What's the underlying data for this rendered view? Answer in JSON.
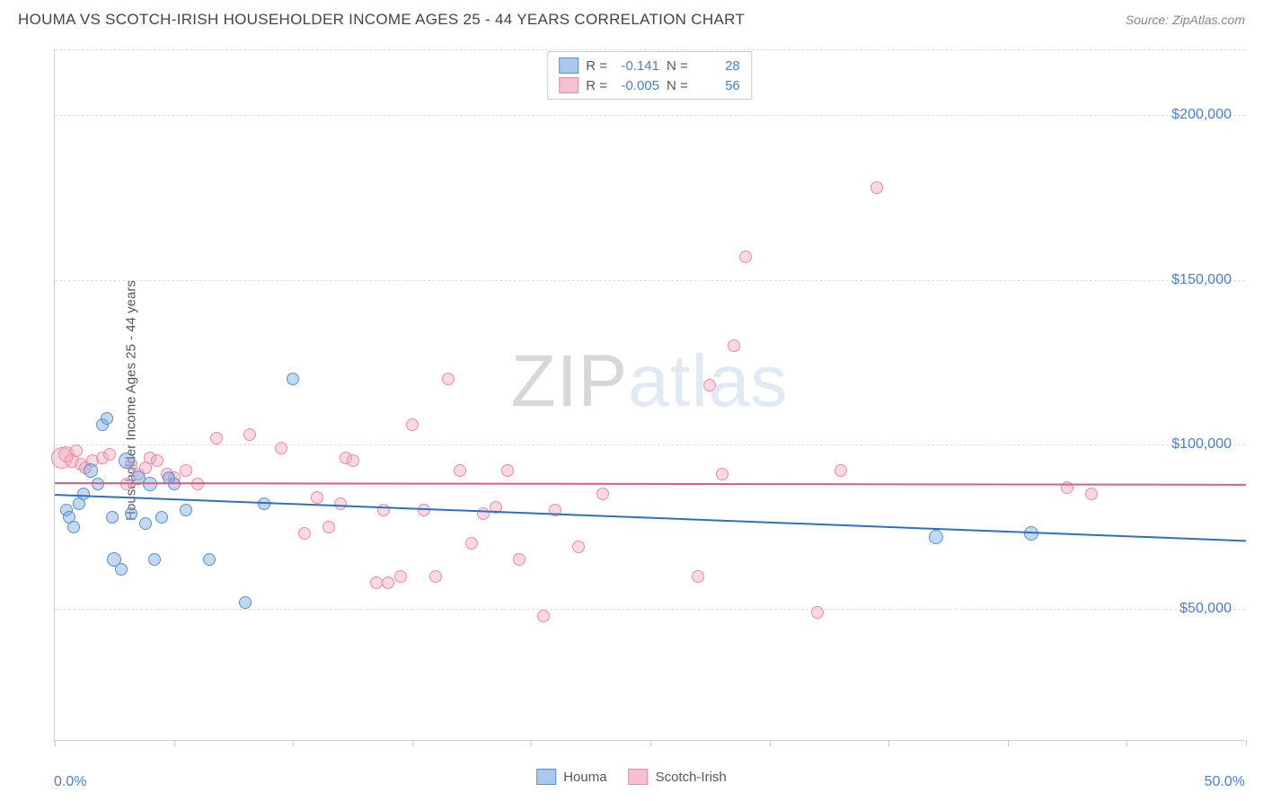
{
  "title": "HOUMA VS SCOTCH-IRISH HOUSEHOLDER INCOME AGES 25 - 44 YEARS CORRELATION CHART",
  "source": "Source: ZipAtlas.com",
  "y_axis_title": "Householder Income Ages 25 - 44 years",
  "x_axis": {
    "min_label": "0.0%",
    "max_label": "50.0%",
    "xlim": [
      0,
      50
    ],
    "tick_count": 11
  },
  "y_axis": {
    "ylim": [
      10000,
      220000
    ],
    "ticks": [
      {
        "v": 50000,
        "label": "$50,000"
      },
      {
        "v": 100000,
        "label": "$100,000"
      },
      {
        "v": 150000,
        "label": "$150,000"
      },
      {
        "v": 200000,
        "label": "$200,000"
      }
    ]
  },
  "series": {
    "houma": {
      "label": "Houma",
      "fill": "rgba(120,170,225,0.45)",
      "stroke": "#5b8fd0",
      "swatch_fill": "#a9c9ec",
      "trend_color": "#2f6fc2",
      "R": "-0.141",
      "N": "28",
      "trend": {
        "y_at_x0": 85000,
        "y_at_x50": 71000
      },
      "points": [
        {
          "x": 0.5,
          "y": 80000,
          "r": 7
        },
        {
          "x": 0.6,
          "y": 78000,
          "r": 7
        },
        {
          "x": 0.8,
          "y": 75000,
          "r": 7
        },
        {
          "x": 1.0,
          "y": 82000,
          "r": 7
        },
        {
          "x": 1.2,
          "y": 85000,
          "r": 7
        },
        {
          "x": 1.5,
          "y": 92000,
          "r": 8
        },
        {
          "x": 1.8,
          "y": 88000,
          "r": 7
        },
        {
          "x": 2.0,
          "y": 106000,
          "r": 7
        },
        {
          "x": 2.2,
          "y": 108000,
          "r": 7
        },
        {
          "x": 2.4,
          "y": 78000,
          "r": 7
        },
        {
          "x": 2.5,
          "y": 65000,
          "r": 8
        },
        {
          "x": 2.8,
          "y": 62000,
          "r": 7
        },
        {
          "x": 3.0,
          "y": 95000,
          "r": 9
        },
        {
          "x": 3.2,
          "y": 79000,
          "r": 7
        },
        {
          "x": 3.5,
          "y": 90000,
          "r": 8
        },
        {
          "x": 3.8,
          "y": 76000,
          "r": 7
        },
        {
          "x": 4.0,
          "y": 88000,
          "r": 8
        },
        {
          "x": 4.2,
          "y": 65000,
          "r": 7
        },
        {
          "x": 4.5,
          "y": 78000,
          "r": 7
        },
        {
          "x": 5.0,
          "y": 88000,
          "r": 7
        },
        {
          "x": 5.5,
          "y": 80000,
          "r": 7
        },
        {
          "x": 6.5,
          "y": 65000,
          "r": 7
        },
        {
          "x": 8.0,
          "y": 52000,
          "r": 7
        },
        {
          "x": 8.8,
          "y": 82000,
          "r": 7
        },
        {
          "x": 10.0,
          "y": 120000,
          "r": 7
        },
        {
          "x": 37.0,
          "y": 72000,
          "r": 8
        },
        {
          "x": 41.0,
          "y": 73000,
          "r": 8
        },
        {
          "x": 4.8,
          "y": 90000,
          "r": 7
        }
      ]
    },
    "scotch_irish": {
      "label": "Scotch-Irish",
      "fill": "rgba(244,170,190,0.45)",
      "stroke": "#e88ba5",
      "swatch_fill": "#f6c0cf",
      "trend_color": "#e05b82",
      "R": "-0.005",
      "N": "56",
      "trend": {
        "y_at_x0": 88500,
        "y_at_x50": 88000
      },
      "points": [
        {
          "x": 0.3,
          "y": 96000,
          "r": 12
        },
        {
          "x": 0.5,
          "y": 97000,
          "r": 9
        },
        {
          "x": 0.7,
          "y": 95000,
          "r": 8
        },
        {
          "x": 0.9,
          "y": 98000,
          "r": 7
        },
        {
          "x": 1.1,
          "y": 94000,
          "r": 7
        },
        {
          "x": 1.3,
          "y": 93000,
          "r": 7
        },
        {
          "x": 1.6,
          "y": 95000,
          "r": 7
        },
        {
          "x": 2.0,
          "y": 96000,
          "r": 7
        },
        {
          "x": 2.3,
          "y": 97000,
          "r": 7
        },
        {
          "x": 3.0,
          "y": 88000,
          "r": 7
        },
        {
          "x": 3.2,
          "y": 94000,
          "r": 7
        },
        {
          "x": 3.5,
          "y": 91000,
          "r": 7
        },
        {
          "x": 3.8,
          "y": 93000,
          "r": 7
        },
        {
          "x": 4.0,
          "y": 96000,
          "r": 7
        },
        {
          "x": 4.3,
          "y": 95000,
          "r": 7
        },
        {
          "x": 4.7,
          "y": 91000,
          "r": 7
        },
        {
          "x": 5.0,
          "y": 90000,
          "r": 7
        },
        {
          "x": 5.5,
          "y": 92000,
          "r": 7
        },
        {
          "x": 6.0,
          "y": 88000,
          "r": 7
        },
        {
          "x": 6.8,
          "y": 102000,
          "r": 7
        },
        {
          "x": 8.2,
          "y": 103000,
          "r": 7
        },
        {
          "x": 9.5,
          "y": 99000,
          "r": 7
        },
        {
          "x": 10.5,
          "y": 73000,
          "r": 7
        },
        {
          "x": 11.0,
          "y": 84000,
          "r": 7
        },
        {
          "x": 11.5,
          "y": 75000,
          "r": 7
        },
        {
          "x": 12.0,
          "y": 82000,
          "r": 7
        },
        {
          "x": 12.2,
          "y": 96000,
          "r": 7
        },
        {
          "x": 12.5,
          "y": 95000,
          "r": 7
        },
        {
          "x": 13.5,
          "y": 58000,
          "r": 7
        },
        {
          "x": 13.8,
          "y": 80000,
          "r": 7
        },
        {
          "x": 14.0,
          "y": 58000,
          "r": 7
        },
        {
          "x": 14.5,
          "y": 60000,
          "r": 7
        },
        {
          "x": 15.0,
          "y": 106000,
          "r": 7
        },
        {
          "x": 15.5,
          "y": 80000,
          "r": 7
        },
        {
          "x": 16.0,
          "y": 60000,
          "r": 7
        },
        {
          "x": 16.5,
          "y": 120000,
          "r": 7
        },
        {
          "x": 17.0,
          "y": 92000,
          "r": 7
        },
        {
          "x": 17.5,
          "y": 70000,
          "r": 7
        },
        {
          "x": 18.0,
          "y": 79000,
          "r": 7
        },
        {
          "x": 18.5,
          "y": 81000,
          "r": 7
        },
        {
          "x": 19.0,
          "y": 92000,
          "r": 7
        },
        {
          "x": 19.5,
          "y": 65000,
          "r": 7
        },
        {
          "x": 20.5,
          "y": 48000,
          "r": 7
        },
        {
          "x": 21.0,
          "y": 80000,
          "r": 7
        },
        {
          "x": 22.0,
          "y": 69000,
          "r": 7
        },
        {
          "x": 23.0,
          "y": 85000,
          "r": 7
        },
        {
          "x": 27.0,
          "y": 60000,
          "r": 7
        },
        {
          "x": 27.5,
          "y": 118000,
          "r": 7
        },
        {
          "x": 28.0,
          "y": 91000,
          "r": 7
        },
        {
          "x": 28.5,
          "y": 130000,
          "r": 7
        },
        {
          "x": 29.0,
          "y": 157000,
          "r": 7
        },
        {
          "x": 32.0,
          "y": 49000,
          "r": 7
        },
        {
          "x": 33.0,
          "y": 92000,
          "r": 7
        },
        {
          "x": 34.5,
          "y": 178000,
          "r": 7
        },
        {
          "x": 42.5,
          "y": 87000,
          "r": 7
        },
        {
          "x": 43.5,
          "y": 85000,
          "r": 7
        }
      ]
    }
  },
  "watermark": {
    "p1": "ZIP",
    "p2": "atlas"
  },
  "labels": {
    "R": "R =",
    "N": "N ="
  }
}
